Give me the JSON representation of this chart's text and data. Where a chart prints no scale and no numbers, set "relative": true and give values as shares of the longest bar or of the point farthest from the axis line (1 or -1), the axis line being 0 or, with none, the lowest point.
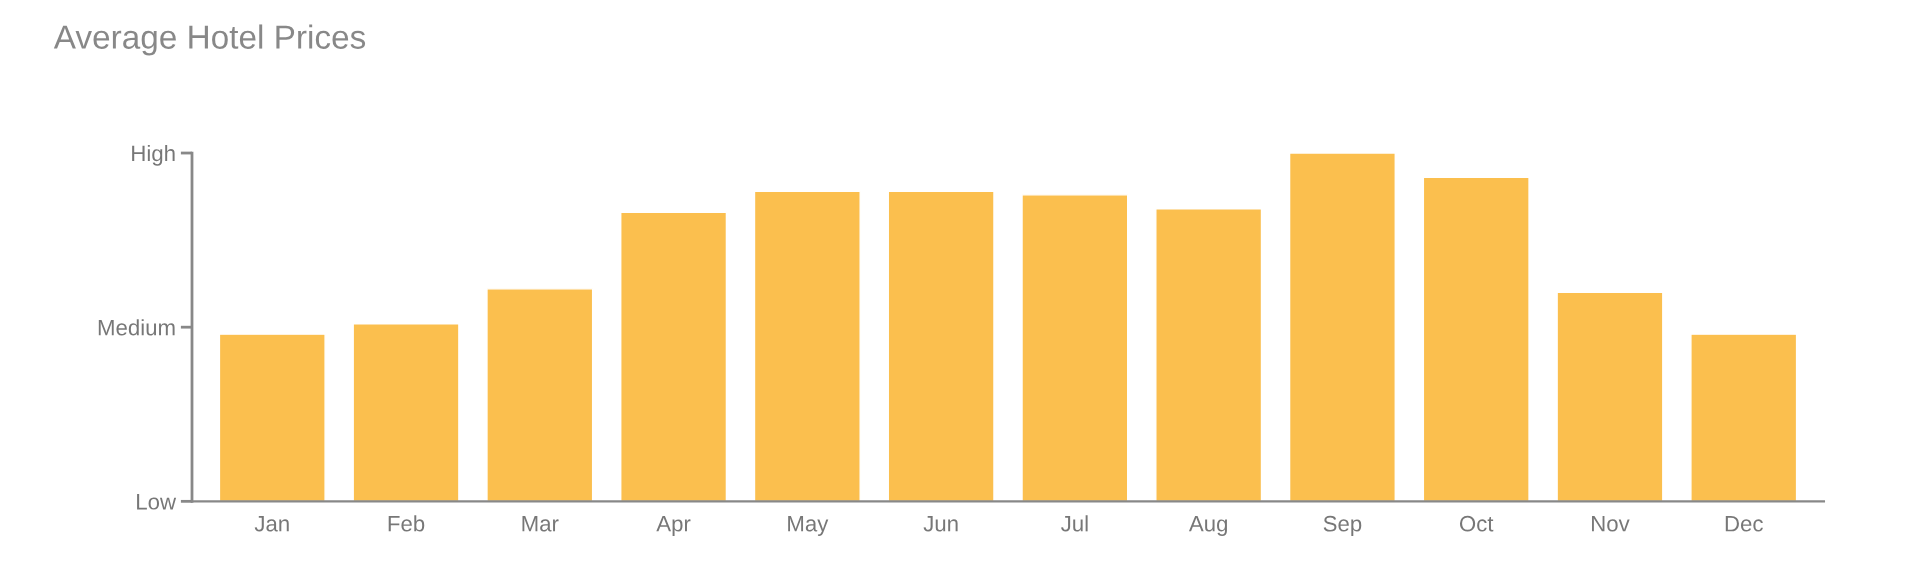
{
  "chart_data": {
    "type": "bar",
    "title": "Average Hotel Prices",
    "categories": [
      "Jan",
      "Feb",
      "Mar",
      "Apr",
      "May",
      "Jun",
      "Jul",
      "Aug",
      "Sep",
      "Oct",
      "Nov",
      "Dec"
    ],
    "values": [
      0.48,
      0.51,
      0.61,
      0.83,
      0.89,
      0.89,
      0.88,
      0.84,
      1.0,
      0.93,
      0.6,
      0.48
    ],
    "color": "#fbbf4e",
    "relative": true,
    "annotations": [
      "Low",
      "Medium",
      "High"
    ],
    "grid": false
  }
}
